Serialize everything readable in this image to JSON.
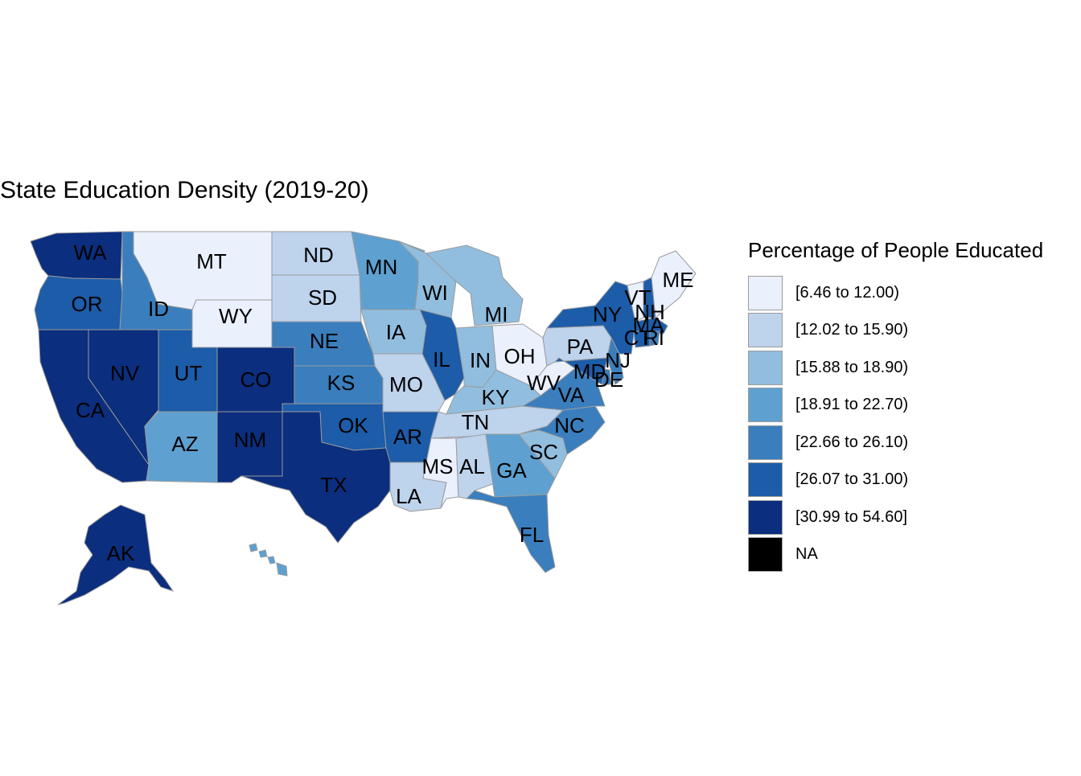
{
  "title": "State Education Density (2019-20)",
  "legend": {
    "title": "Percentage of People Educated",
    "bins": [
      {
        "label": "[6.46 to 12.00)",
        "color": "#eaf0fc"
      },
      {
        "label": "[12.02 to 15.90)",
        "color": "#bed3ec"
      },
      {
        "label": "[15.88 to 18.90)",
        "color": "#91bedf"
      },
      {
        "label": "[18.91 to 22.70)",
        "color": "#5ea1d1"
      },
      {
        "label": "[22.66 to 26.10)",
        "color": "#3a7ebd"
      },
      {
        "label": "[26.07 to 31.00)",
        "color": "#1c5ca9"
      },
      {
        "label": "[30.99 to 54.60]",
        "color": "#0b2e7e"
      },
      {
        "label": "NA",
        "color": "#000000"
      }
    ]
  },
  "colors": {
    "border": "#9b9b9b"
  },
  "states": [
    {
      "abbr": "WA",
      "bin": 6
    },
    {
      "abbr": "OR",
      "bin": 5
    },
    {
      "abbr": "CA",
      "bin": 6
    },
    {
      "abbr": "ID",
      "bin": 4
    },
    {
      "abbr": "NV",
      "bin": 6
    },
    {
      "abbr": "MT",
      "bin": 0
    },
    {
      "abbr": "WY",
      "bin": 0
    },
    {
      "abbr": "UT",
      "bin": 5
    },
    {
      "abbr": "AZ",
      "bin": 3
    },
    {
      "abbr": "CO",
      "bin": 6
    },
    {
      "abbr": "NM",
      "bin": 6
    },
    {
      "abbr": "ND",
      "bin": 1
    },
    {
      "abbr": "SD",
      "bin": 1
    },
    {
      "abbr": "NE",
      "bin": 4
    },
    {
      "abbr": "KS",
      "bin": 4
    },
    {
      "abbr": "OK",
      "bin": 5
    },
    {
      "abbr": "TX",
      "bin": 6
    },
    {
      "abbr": "MN",
      "bin": 3
    },
    {
      "abbr": "IA",
      "bin": 2
    },
    {
      "abbr": "MO",
      "bin": 1
    },
    {
      "abbr": "AR",
      "bin": 5
    },
    {
      "abbr": "LA",
      "bin": 1
    },
    {
      "abbr": "WI",
      "bin": 2
    },
    {
      "abbr": "IL",
      "bin": 5
    },
    {
      "abbr": "MI",
      "bin": 2
    },
    {
      "abbr": "IN",
      "bin": 2
    },
    {
      "abbr": "OH",
      "bin": 0
    },
    {
      "abbr": "KY",
      "bin": 2
    },
    {
      "abbr": "TN",
      "bin": 1
    },
    {
      "abbr": "MS",
      "bin": 0
    },
    {
      "abbr": "AL",
      "bin": 1
    },
    {
      "abbr": "GA",
      "bin": 3
    },
    {
      "abbr": "FL",
      "bin": 4
    },
    {
      "abbr": "SC",
      "bin": 2
    },
    {
      "abbr": "NC",
      "bin": 4
    },
    {
      "abbr": "VA",
      "bin": 4
    },
    {
      "abbr": "WV",
      "bin": 0
    },
    {
      "abbr": "PA",
      "bin": 1
    },
    {
      "abbr": "NY",
      "bin": 5
    },
    {
      "abbr": "NJ",
      "bin": 4
    },
    {
      "abbr": "DE",
      "bin": 4
    },
    {
      "abbr": "MD",
      "bin": 5
    },
    {
      "abbr": "VT",
      "bin": 0
    },
    {
      "abbr": "NH",
      "bin": 5
    },
    {
      "abbr": "ME",
      "bin": 0
    },
    {
      "abbr": "MA",
      "bin": 5
    },
    {
      "abbr": "CT",
      "bin": 5
    },
    {
      "abbr": "RI",
      "bin": 4
    },
    {
      "abbr": "AK",
      "bin": 6
    },
    {
      "abbr": "HI",
      "bin": 3
    }
  ]
}
